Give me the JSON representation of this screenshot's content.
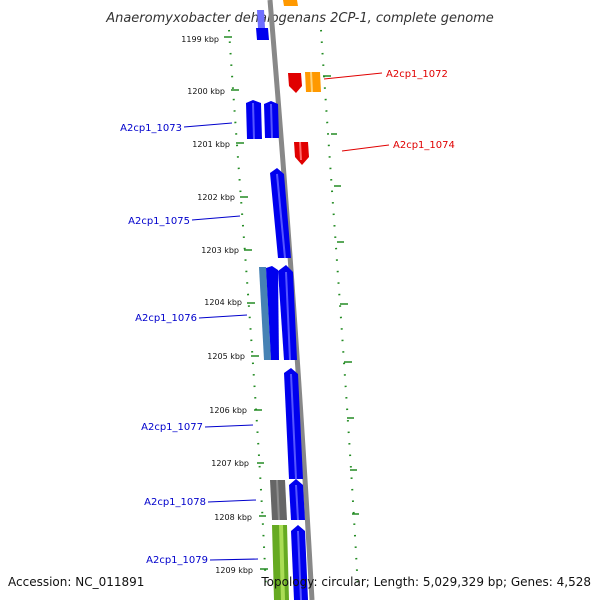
{
  "title": "Anaeromyxobacter dehalogenans 2CP-1, complete genome",
  "footer": {
    "accession": "Accession: NC_011891",
    "topology": "Topology: circular; Length: 5,029,329 bp; Genes: 4,528"
  },
  "ticks": [
    "1199 kbp",
    "1200 kbp",
    "1201 kbp",
    "1202 kbp",
    "1203 kbp",
    "1204 kbp",
    "1205 kbp",
    "1206 kbp",
    "1207 kbp",
    "1208 kbp",
    "1209 kbp"
  ],
  "genes": {
    "forward": [
      {
        "label": "A2cp1_1072",
        "color": "#e00000"
      },
      {
        "label": "A2cp1_1074",
        "color": "#e00000"
      }
    ],
    "reverse": [
      {
        "label": "A2cp1_1073",
        "color": "#0000cc"
      },
      {
        "label": "A2cp1_1075",
        "color": "#0000cc"
      },
      {
        "label": "A2cp1_1076",
        "color": "#0000cc"
      },
      {
        "label": "A2cp1_1077",
        "color": "#0000cc"
      },
      {
        "label": "A2cp1_1078",
        "color": "#0000cc"
      },
      {
        "label": "A2cp1_1079",
        "color": "#0000cc"
      }
    ]
  },
  "colors": {
    "cds_blue": "#0000ee",
    "cds_red": "#e00000",
    "orange": "#ff9900",
    "gray": "#666666",
    "steel": "#4682b4",
    "green": "#66aa22",
    "tick_green": "#228b22",
    "backbone": "#888888"
  }
}
